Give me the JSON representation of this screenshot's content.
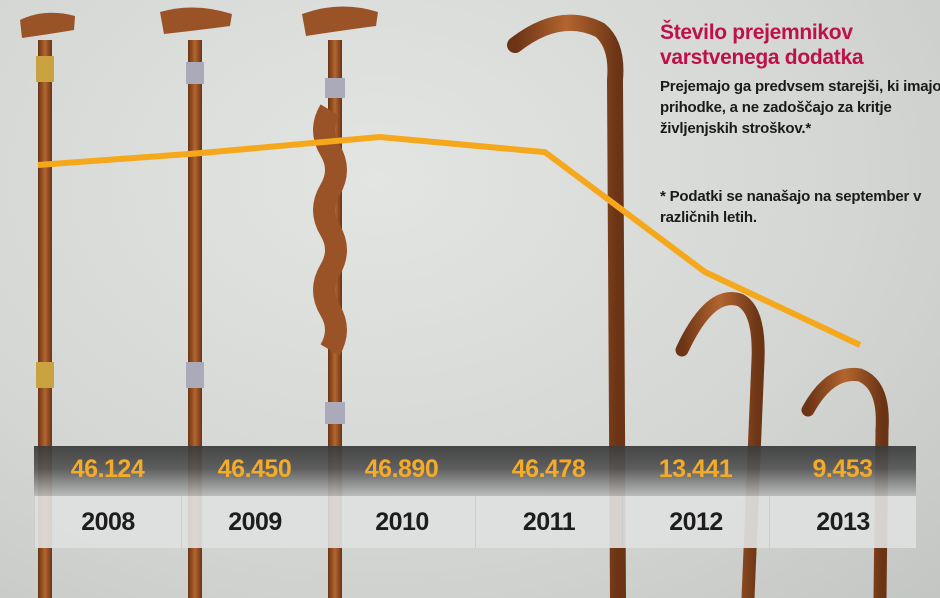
{
  "title": "Število prejemnikov varstvenega dodatka",
  "subtitle": "Prejemajo ga predvsem starejši, ki imajo prihodke, a ne zadoščajo za kritje življenjskih stroškov.*",
  "footnote": "* Podatki se nanašajo na september v različnih letih.",
  "colors": {
    "line": "#f6a81c",
    "title": "#c0104a",
    "cane": "#8b4a22"
  },
  "chart_data": {
    "type": "line",
    "categories": [
      "2008",
      "2009",
      "2010",
      "2011",
      "2012",
      "2013"
    ],
    "value_labels": [
      "46.124",
      "46.450",
      "46.890",
      "46.478",
      "13.441",
      "9.453"
    ],
    "values": [
      46124,
      46450,
      46890,
      46478,
      13441,
      9453
    ]
  }
}
